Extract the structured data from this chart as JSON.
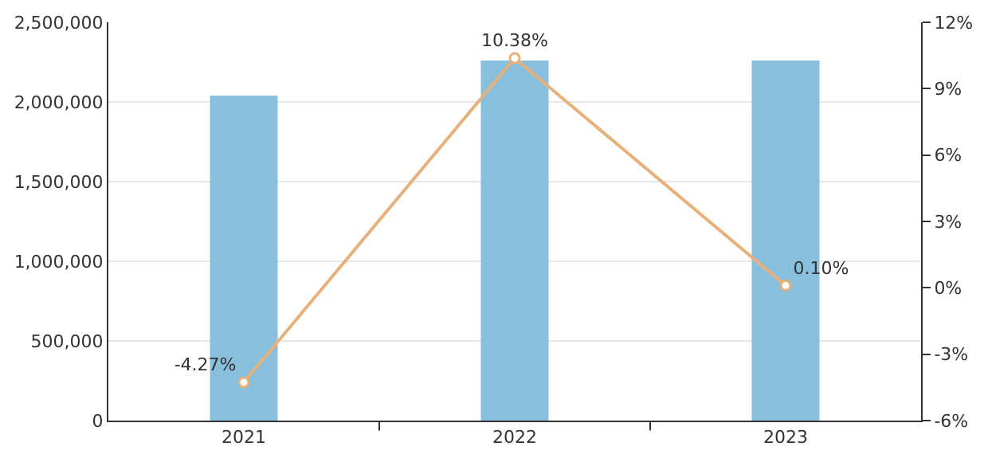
{
  "chart_data": {
    "type": "bar",
    "categories": [
      "2021",
      "2022",
      "2023"
    ],
    "series": [
      {
        "color": "#88bfdd",
        "values": [
          2040000,
          2260000,
          2260000
        ]
      },
      {
        "type": "line",
        "axis": "y2",
        "color": "#e8b07a",
        "marker": "circle",
        "values": [
          -4.27,
          10.38,
          0.1
        ],
        "value_labels": [
          "-4.27%",
          "10.38%",
          "0.10%"
        ]
      }
    ],
    "ylim": [
      0,
      2500000
    ],
    "yticks": [
      {
        "value": 0,
        "label": "0"
      },
      {
        "value": 500000,
        "label": "500,000"
      },
      {
        "value": 1000000,
        "label": "1,000,000"
      },
      {
        "value": 1500000,
        "label": "1,500,000"
      },
      {
        "value": 2000000,
        "label": "2,000,000"
      },
      {
        "value": 2500000,
        "label": "2,500,000"
      }
    ],
    "y2lim": [
      -6,
      12
    ],
    "y2ticks": [
      {
        "value": -6,
        "label": "-6%"
      },
      {
        "value": -3,
        "label": "-3%"
      },
      {
        "value": 0,
        "label": "0%"
      },
      {
        "value": 3,
        "label": "3%"
      },
      {
        "value": 6,
        "label": "6%"
      },
      {
        "value": 9,
        "label": "9%"
      },
      {
        "value": 12,
        "label": "12%"
      }
    ],
    "grid": "y"
  }
}
